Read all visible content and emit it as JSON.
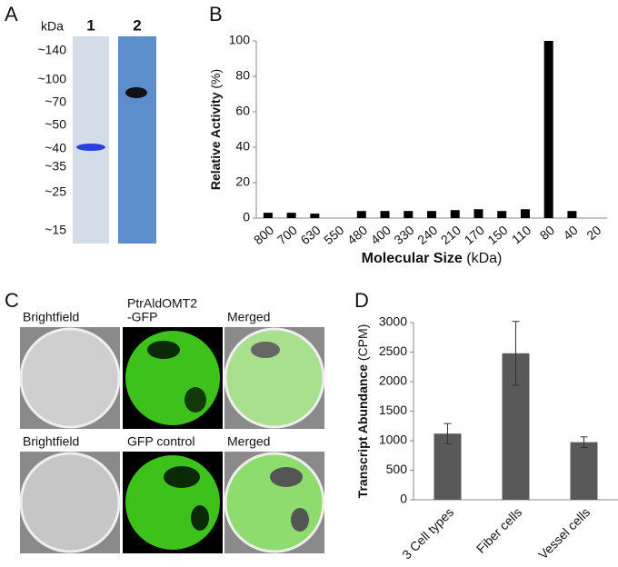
{
  "panel_letters": [
    "A",
    "B",
    "C",
    "D"
  ],
  "gel": {
    "unit": "kDa",
    "lanes": [
      "1",
      "2"
    ],
    "markers": [
      "~140",
      "~100",
      "~70",
      "~50",
      "~40",
      "~35",
      "~25",
      "~15"
    ]
  },
  "images": {
    "rows": [
      [
        {
          "label": [
            "Brightfield"
          ]
        },
        {
          "label": [
            "PtrAldOMT2",
            "-GFP"
          ]
        },
        {
          "label": [
            "Merged"
          ]
        }
      ],
      [
        {
          "label": [
            "Brightfield"
          ]
        },
        {
          "label": [
            "GFP control"
          ]
        },
        {
          "label": [
            "Merged"
          ]
        }
      ]
    ]
  },
  "chart_data": [
    {
      "type": "bar",
      "xlabel": "Molecular Size",
      "xlabel_unit": "(kDa)",
      "ylabel": "Relative Activity",
      "ylabel_unit": "(%)",
      "categories": [
        "800",
        "700",
        "630",
        "550",
        "480",
        "400",
        "330",
        "240",
        "210",
        "170",
        "150",
        "110",
        "80",
        "40",
        "20"
      ],
      "values": [
        3,
        3,
        2.5,
        0,
        4,
        4,
        4,
        4,
        4.5,
        5,
        4,
        5,
        100,
        4,
        0
      ],
      "color": "#000000",
      "ylim": [
        0,
        100
      ],
      "yticks": [
        0,
        20,
        40,
        60,
        80,
        100
      ],
      "grid": false
    },
    {
      "type": "bar",
      "ylabel": "Transcript Abundance",
      "ylabel_unit": "(CPM)",
      "categories": [
        "3 Cell types",
        "Fiber cells",
        "Vessel cells"
      ],
      "values": [
        1120,
        2480,
        975
      ],
      "errors": [
        170,
        540,
        90
      ],
      "color": "#595959",
      "ylim": [
        0,
        3000
      ],
      "yticks": [
        0,
        500,
        1000,
        1500,
        2000,
        2500,
        3000
      ],
      "grid": false
    }
  ]
}
